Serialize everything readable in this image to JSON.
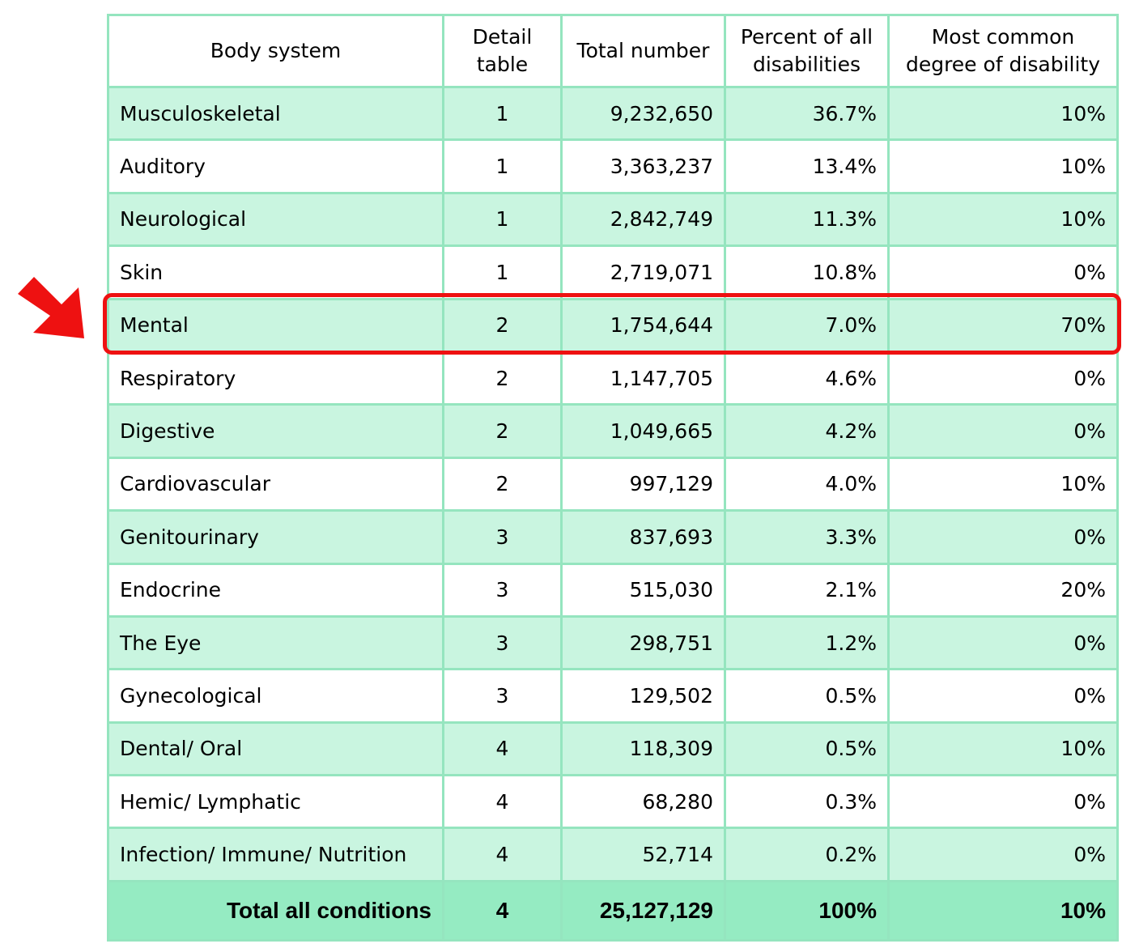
{
  "chart_data": {
    "type": "table",
    "columns": [
      "Body system",
      "Detail table",
      "Total number",
      "Percent of all disabilities",
      "Most common degree of disability"
    ],
    "rows": [
      {
        "system": "Musculoskeletal",
        "detail": "1",
        "total": "9,232,650",
        "percent": "36.7%",
        "degree": "10%"
      },
      {
        "system": "Auditory",
        "detail": "1",
        "total": "3,363,237",
        "percent": "13.4%",
        "degree": "10%"
      },
      {
        "system": "Neurological",
        "detail": "1",
        "total": "2,842,749",
        "percent": "11.3%",
        "degree": "10%"
      },
      {
        "system": "Skin",
        "detail": "1",
        "total": "2,719,071",
        "percent": "10.8%",
        "degree": "0%"
      },
      {
        "system": "Mental",
        "detail": "2",
        "total": "1,754,644",
        "percent": "7.0%",
        "degree": "70%"
      },
      {
        "system": "Respiratory",
        "detail": "2",
        "total": "1,147,705",
        "percent": "4.6%",
        "degree": "0%"
      },
      {
        "system": "Digestive",
        "detail": "2",
        "total": "1,049,665",
        "percent": "4.2%",
        "degree": "0%"
      },
      {
        "system": "Cardiovascular",
        "detail": "2",
        "total": "997,129",
        "percent": "4.0%",
        "degree": "10%"
      },
      {
        "system": "Genitourinary",
        "detail": "3",
        "total": "837,693",
        "percent": "3.3%",
        "degree": "0%"
      },
      {
        "system": "Endocrine",
        "detail": "3",
        "total": "515,030",
        "percent": "2.1%",
        "degree": "20%"
      },
      {
        "system": "The Eye",
        "detail": "3",
        "total": "298,751",
        "percent": "1.2%",
        "degree": "0%"
      },
      {
        "system": "Gynecological",
        "detail": "3",
        "total": "129,502",
        "percent": "0.5%",
        "degree": "0%"
      },
      {
        "system": "Dental/ Oral",
        "detail": "4",
        "total": "118,309",
        "percent": "0.5%",
        "degree": "10%"
      },
      {
        "system": "Hemic/ Lymphatic",
        "detail": "4",
        "total": "68,280",
        "percent": "0.3%",
        "degree": "0%"
      },
      {
        "system": "Infection/ Immune/ Nutrition",
        "detail": "4",
        "total": "52,714",
        "percent": "0.2%",
        "degree": "0%"
      }
    ],
    "total": {
      "system": "Total all conditions",
      "detail": "4",
      "total": "25,127,129",
      "percent": "100%",
      "degree": "10%"
    },
    "highlighted_row": "Mental"
  },
  "colors": {
    "row_alt": "#c9f5e0",
    "row_plain": "#ffffff",
    "grid": "#95e5bf",
    "total_row": "#95ebc2",
    "highlight": "#ee1111"
  }
}
